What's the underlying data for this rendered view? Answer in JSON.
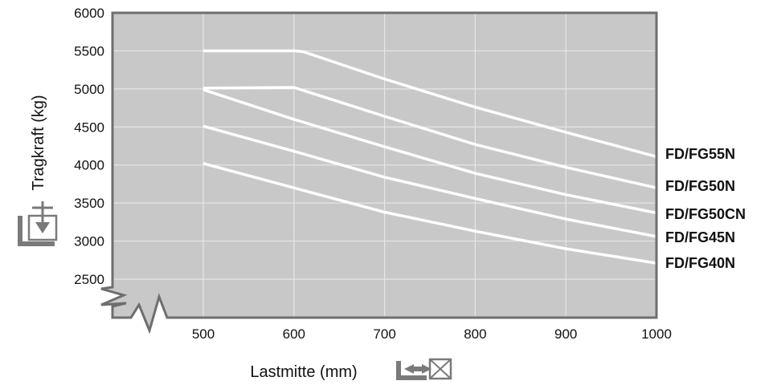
{
  "chart_data": {
    "type": "line",
    "title": "",
    "xlabel": "Lastmitte (mm)",
    "ylabel": "Tragkraft (kg)",
    "xlim": [
      500,
      1000
    ],
    "ylim": [
      2500,
      6000
    ],
    "x_ticks": [
      "500",
      "600",
      "700",
      "800",
      "900",
      "1000"
    ],
    "y_ticks": [
      "2500",
      "3000",
      "3500",
      "4000",
      "4500",
      "5000",
      "5500",
      "6000"
    ],
    "grid": true,
    "axis_break": true,
    "colors": {
      "plot_bg": "#c8c8c8",
      "frame": "#6e6e6e",
      "grid": "#e6e6e6",
      "line": "#ffffff",
      "icon": "#7a7a7a"
    },
    "series": [
      {
        "name": "FD/FG55N",
        "x": [
          500,
          600,
          610,
          700,
          800,
          900,
          1000
        ],
        "values": [
          5500,
          5500,
          5490,
          5130,
          4760,
          4430,
          4110
        ]
      },
      {
        "name": "FD/FG50N",
        "x": [
          500,
          600,
          700,
          800,
          900,
          1000
        ],
        "values": [
          5010,
          5020,
          4640,
          4270,
          3970,
          3700
        ]
      },
      {
        "name": "FD/FG50CN",
        "x": [
          500,
          600,
          700,
          800,
          900,
          1000
        ],
        "values": [
          4990,
          4600,
          4240,
          3890,
          3610,
          3370
        ]
      },
      {
        "name": "FD/FG45N",
        "x": [
          500,
          600,
          700,
          800,
          900,
          1000
        ],
        "values": [
          4510,
          4180,
          3840,
          3560,
          3290,
          3060
        ]
      },
      {
        "name": "FD/FG40N",
        "x": [
          500,
          600,
          700,
          800,
          900,
          1000
        ],
        "values": [
          4020,
          3700,
          3380,
          3130,
          2900,
          2710
        ]
      }
    ]
  }
}
